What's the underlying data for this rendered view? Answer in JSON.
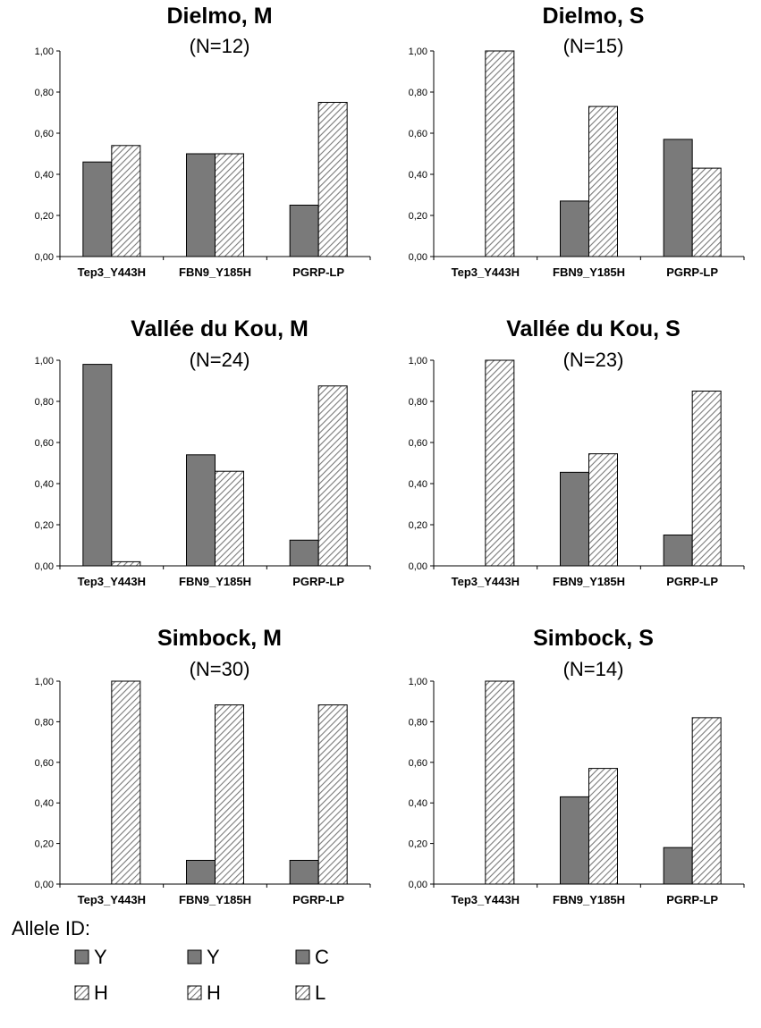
{
  "chart_data": [
    {
      "type": "bar",
      "title": "Dielmo, M",
      "subtitle": "(N=12)",
      "categories": [
        "Tep3_Y443H",
        "FBN9_Y185H",
        "PGRP-LP"
      ],
      "series": [
        {
          "values": [
            0.46,
            0.5,
            0.25
          ]
        },
        {
          "values": [
            0.54,
            0.5,
            0.75
          ]
        }
      ],
      "ylim": [
        0,
        1
      ],
      "yticks": [
        "0,00",
        "0,20",
        "0,40",
        "0,60",
        "0,80",
        "1,00"
      ],
      "legend": "none"
    },
    {
      "type": "bar",
      "title": "Dielmo, S",
      "subtitle": "(N=15)",
      "categories": [
        "Tep3_Y443H",
        "FBN9_Y185H",
        "PGRP-LP"
      ],
      "series": [
        {
          "values": [
            0.0,
            0.27,
            0.57
          ]
        },
        {
          "values": [
            1.0,
            0.73,
            0.43
          ]
        }
      ],
      "ylim": [
        0,
        1
      ],
      "yticks": [
        "0,00",
        "0,20",
        "0,40",
        "0,60",
        "0,80",
        "1,00"
      ],
      "legend": "none"
    },
    {
      "type": "bar",
      "title": "Vallée du Kou, M",
      "subtitle": "(N=24)",
      "categories": [
        "Tep3_Y443H",
        "FBN9_Y185H",
        "PGRP-LP"
      ],
      "series": [
        {
          "values": [
            0.98,
            0.54,
            0.125
          ]
        },
        {
          "values": [
            0.02,
            0.46,
            0.875
          ]
        }
      ],
      "ylim": [
        0,
        1
      ],
      "yticks": [
        "0,00",
        "0,20",
        "0,40",
        "0,60",
        "0,80",
        "1,00"
      ],
      "legend": "none"
    },
    {
      "type": "bar",
      "title": "Vallée du Kou, S",
      "subtitle": "(N=23)",
      "categories": [
        "Tep3_Y443H",
        "FBN9_Y185H",
        "PGRP-LP"
      ],
      "series": [
        {
          "values": [
            0.0,
            0.455,
            0.15
          ]
        },
        {
          "values": [
            1.0,
            0.545,
            0.85
          ]
        }
      ],
      "ylim": [
        0,
        1
      ],
      "yticks": [
        "0,00",
        "0,20",
        "0,40",
        "0,60",
        "0,80",
        "1,00"
      ],
      "legend": "none"
    },
    {
      "type": "bar",
      "title": "Simbock, M",
      "subtitle": "(N=30)",
      "categories": [
        "Tep3_Y443H",
        "FBN9_Y185H",
        "PGRP-LP"
      ],
      "series": [
        {
          "values": [
            0.0,
            0.117,
            0.117
          ]
        },
        {
          "values": [
            1.0,
            0.883,
            0.883
          ]
        }
      ],
      "ylim": [
        0,
        1
      ],
      "yticks": [
        "0,00",
        "0,20",
        "0,40",
        "0,60",
        "0,80",
        "1,00"
      ],
      "legend": "none"
    },
    {
      "type": "bar",
      "title": "Simbock, S",
      "subtitle": "(N=14)",
      "categories": [
        "Tep3_Y443H",
        "FBN9_Y185H",
        "PGRP-LP"
      ],
      "series": [
        {
          "values": [
            0.0,
            0.43,
            0.18
          ]
        },
        {
          "values": [
            1.0,
            0.57,
            0.82
          ]
        }
      ],
      "ylim": [
        0,
        1
      ],
      "yticks": [
        "0,00",
        "0,20",
        "0,40",
        "0,60",
        "0,80",
        "1,00"
      ],
      "legend": "none"
    }
  ],
  "legend": {
    "title": "Allele ID:",
    "columns": [
      [
        {
          "label": "Y",
          "style": "solid"
        },
        {
          "label": "H",
          "style": "hatched"
        }
      ],
      [
        {
          "label": "Y",
          "style": "solid"
        },
        {
          "label": "H",
          "style": "hatched"
        }
      ],
      [
        {
          "label": "C",
          "style": "solid"
        },
        {
          "label": "L",
          "style": "hatched"
        }
      ]
    ]
  },
  "colors": {
    "solid_fill": "#7a7a7a",
    "hatch_line": "#7a7a7a",
    "hatch_bg": "#ffffff",
    "stroke": "#000000"
  }
}
